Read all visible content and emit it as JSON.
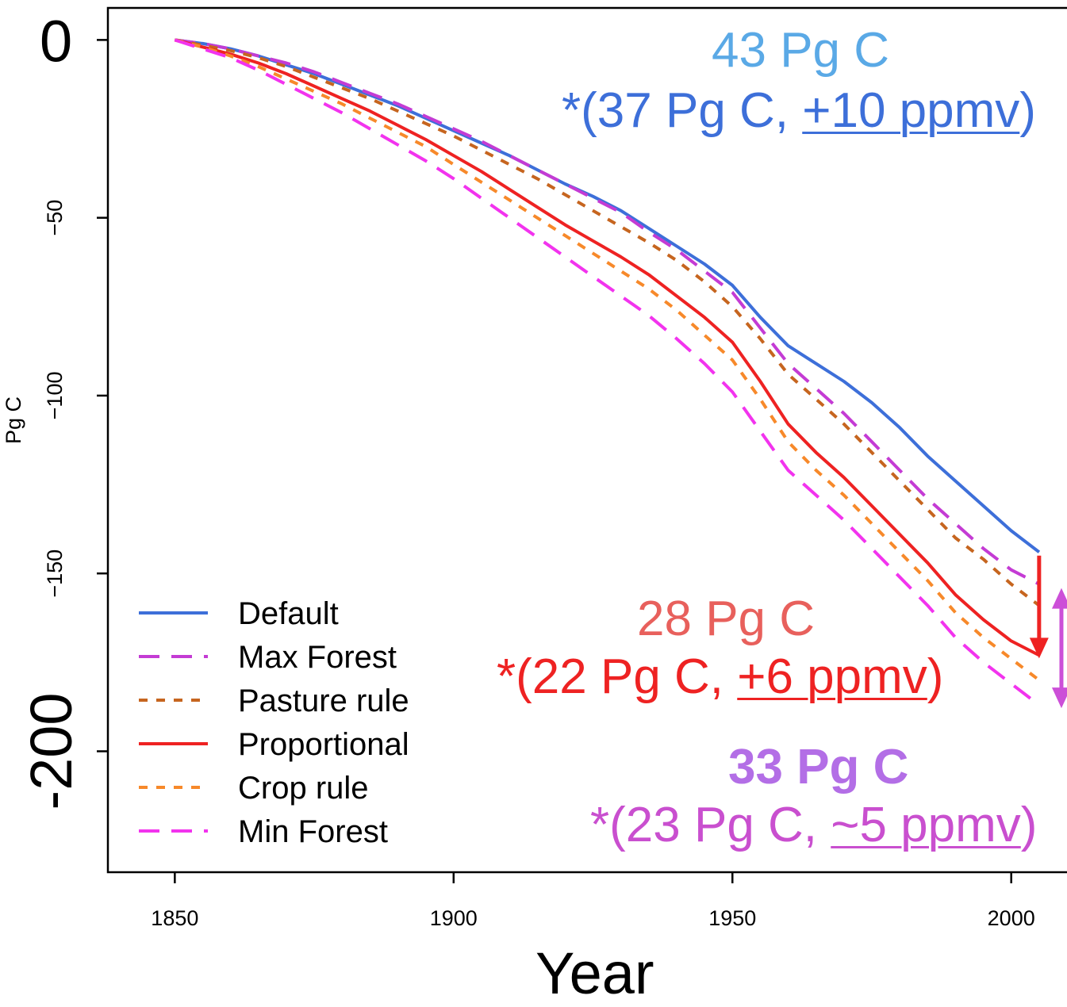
{
  "chart_data": {
    "type": "line",
    "xlabel": "Year",
    "ylabel": "Pg C",
    "xlim": [
      1838,
      2010
    ],
    "ylim": [
      -234,
      9
    ],
    "x_ticks": [
      {
        "value": 1850,
        "label": "1850"
      },
      {
        "value": 1900,
        "label": "1900"
      },
      {
        "value": 1950,
        "label": "1950"
      },
      {
        "value": 2000,
        "label": "2000"
      }
    ],
    "y_ticks": [
      {
        "value": 0,
        "label": "0",
        "size": "large"
      },
      {
        "value": -50,
        "label": "−50",
        "size": "small"
      },
      {
        "value": -100,
        "label": "−100",
        "size": "small"
      },
      {
        "value": -150,
        "label": "−150",
        "size": "small"
      },
      {
        "value": -200,
        "label": "-200",
        "size": "large"
      }
    ],
    "legend": {
      "placement": "bottom-left"
    },
    "series": [
      {
        "name": "Default",
        "color": "#3d6fd9",
        "dash": "solid",
        "x": [
          1850,
          1855,
          1860,
          1865,
          1870,
          1875,
          1880,
          1885,
          1890,
          1895,
          1900,
          1905,
          1910,
          1915,
          1920,
          1925,
          1930,
          1935,
          1940,
          1945,
          1950,
          1955,
          1960,
          1965,
          1970,
          1975,
          1980,
          1985,
          1990,
          1995,
          2000,
          2005
        ],
        "y": [
          0,
          -1,
          -2.5,
          -4.5,
          -7,
          -9.5,
          -12.5,
          -15.5,
          -18.5,
          -22,
          -25.5,
          -29,
          -32.5,
          -36.5,
          -40.5,
          -44,
          -48,
          -53,
          -58,
          -63,
          -69,
          -78,
          -86,
          -91,
          -96,
          -102,
          -109,
          -117,
          -124,
          -131,
          -138,
          -144
        ]
      },
      {
        "name": "Max Forest",
        "color": "#c43bd4",
        "dash": "long",
        "x": [
          1850,
          1855,
          1860,
          1865,
          1870,
          1875,
          1880,
          1885,
          1890,
          1895,
          1900,
          1905,
          1910,
          1915,
          1920,
          1925,
          1930,
          1935,
          1940,
          1945,
          1950,
          1955,
          1960,
          1965,
          1970,
          1975,
          1980,
          1985,
          1990,
          1995,
          2000,
          2005
        ],
        "y": [
          0,
          -1,
          -2.5,
          -4.5,
          -6.5,
          -9,
          -12,
          -15,
          -18,
          -21.5,
          -25,
          -28.5,
          -32.5,
          -36.5,
          -40.5,
          -44.5,
          -48.5,
          -54,
          -59,
          -65,
          -71,
          -81,
          -91,
          -98,
          -105,
          -113,
          -121,
          -129,
          -136,
          -143,
          -149,
          -153
        ]
      },
      {
        "name": "Pasture rule",
        "color": "#c6651f",
        "dash": "short",
        "x": [
          1850,
          1855,
          1860,
          1865,
          1870,
          1875,
          1880,
          1885,
          1890,
          1895,
          1900,
          1905,
          1910,
          1915,
          1920,
          1925,
          1930,
          1935,
          1940,
          1945,
          1950,
          1955,
          1960,
          1965,
          1970,
          1975,
          1980,
          1985,
          1990,
          1995,
          2000,
          2005
        ],
        "y": [
          0,
          -1.5,
          -3,
          -5,
          -7.5,
          -10.5,
          -13.5,
          -16.5,
          -20,
          -23.5,
          -27,
          -31,
          -35,
          -39,
          -43.5,
          -48,
          -52.5,
          -57,
          -62,
          -68,
          -75,
          -84,
          -94,
          -101,
          -108,
          -116,
          -124,
          -132,
          -140,
          -146,
          -153,
          -159
        ]
      },
      {
        "name": "Proportional",
        "color": "#ee2222",
        "dash": "solid",
        "x": [
          1850,
          1855,
          1860,
          1865,
          1870,
          1875,
          1880,
          1885,
          1890,
          1895,
          1900,
          1905,
          1910,
          1915,
          1920,
          1925,
          1930,
          1935,
          1940,
          1945,
          1950,
          1955,
          1960,
          1965,
          1970,
          1975,
          1980,
          1985,
          1990,
          1995,
          2000,
          2005
        ],
        "y": [
          0,
          -2,
          -4,
          -6.5,
          -9.5,
          -13,
          -16.5,
          -20,
          -24,
          -28,
          -32.5,
          -37,
          -42,
          -47,
          -52,
          -56.5,
          -61,
          -66,
          -72,
          -78,
          -85,
          -96,
          -108,
          -116,
          -123,
          -131,
          -139,
          -147,
          -156,
          -163,
          -169,
          -173
        ]
      },
      {
        "name": "Crop rule",
        "color": "#f7892a",
        "dash": "short",
        "x": [
          1850,
          1855,
          1860,
          1865,
          1870,
          1875,
          1880,
          1885,
          1890,
          1895,
          1900,
          1905,
          1910,
          1915,
          1920,
          1925,
          1930,
          1935,
          1940,
          1945,
          1950,
          1955,
          1960,
          1965,
          1970,
          1975,
          1980,
          1985,
          1990,
          1995,
          2000,
          2005
        ],
        "y": [
          0,
          -2,
          -4.5,
          -7.5,
          -11,
          -14.5,
          -18,
          -22,
          -26,
          -30,
          -35,
          -40,
          -45,
          -50,
          -55,
          -60,
          -65,
          -70,
          -76,
          -83,
          -90,
          -101,
          -113,
          -121,
          -128,
          -136,
          -144,
          -152,
          -161,
          -168,
          -174,
          -180
        ]
      },
      {
        "name": "Min Forest",
        "color": "#f233ee",
        "dash": "long",
        "x": [
          1850,
          1855,
          1860,
          1865,
          1870,
          1875,
          1880,
          1885,
          1890,
          1895,
          1900,
          1905,
          1910,
          1915,
          1920,
          1925,
          1930,
          1935,
          1940,
          1945,
          1950,
          1955,
          1960,
          1965,
          1970,
          1975,
          1980,
          1985,
          1990,
          1995,
          2000,
          2005
        ],
        "y": [
          0,
          -2.5,
          -5,
          -8.5,
          -12.5,
          -16.5,
          -20.5,
          -25,
          -29.5,
          -34,
          -39,
          -44.5,
          -50,
          -55.5,
          -61,
          -66.5,
          -72,
          -77.5,
          -84,
          -91,
          -99,
          -110,
          -121,
          -128,
          -135,
          -143,
          -151,
          -159,
          -168,
          -175,
          -181,
          -187
        ]
      }
    ],
    "arrows": [
      {
        "name": "red-arrow",
        "color": "#ee2222",
        "x": 2005,
        "y1": -145,
        "y2": -173,
        "heads": "end"
      },
      {
        "name": "purple-arrow",
        "color": "#cc4fd8",
        "x": 2009,
        "y1": -155,
        "y2": -187,
        "heads": "both"
      }
    ]
  },
  "annotations": {
    "a1_line1": "43 Pg C",
    "a1_line2_pre": "*(37 Pg C, ",
    "a1_line2_u": "+10 ppmv",
    "a1_line2_post": ")",
    "a1_color1": "#5aa9e6",
    "a1_color2": "#3d6fd9",
    "a2_line1": "28 Pg C",
    "a2_line2_pre": "*(22 Pg C, ",
    "a2_line2_u": "+6 ppmv",
    "a2_line2_post": ")",
    "a2_color1": "#e8605c",
    "a2_color2": "#ee2222",
    "a3_line1": "33 Pg C",
    "a3_line2_pre": "*(23 Pg C, ",
    "a3_line2_u": "~5 ppmv",
    "a3_line2_post": ")",
    "a3_color1": "#b36ee6",
    "a3_color2": "#c94fcf"
  }
}
